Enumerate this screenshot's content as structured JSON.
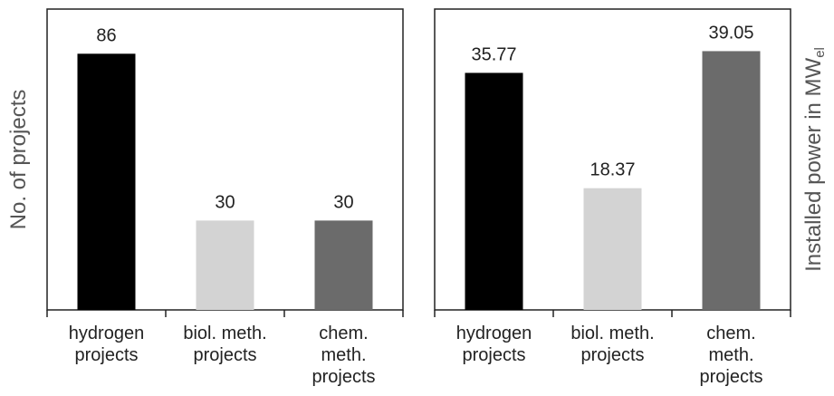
{
  "chart_data": [
    {
      "type": "bar",
      "ylabel": "No. of projects",
      "categories": [
        "hydrogen\nprojects",
        "biol. meth.\nprojects",
        "chem.\nmeth.\nprojects"
      ],
      "values": [
        86,
        30,
        30
      ],
      "colors": [
        "#000000",
        "#d3d3d3",
        "#6b6b6b"
      ],
      "ylim": [
        0,
        101
      ]
    },
    {
      "type": "bar",
      "ylabel": "Installed power in MW",
      "ylabel_sub": "el",
      "categories": [
        "hydrogen\nprojects",
        "biol. meth.\nprojects",
        "chem.\nmeth.\nprojects"
      ],
      "values": [
        35.77,
        18.37,
        39.05
      ],
      "colors": [
        "#000000",
        "#d3d3d3",
        "#6b6b6b"
      ],
      "ylim": [
        0,
        45.4
      ]
    }
  ]
}
